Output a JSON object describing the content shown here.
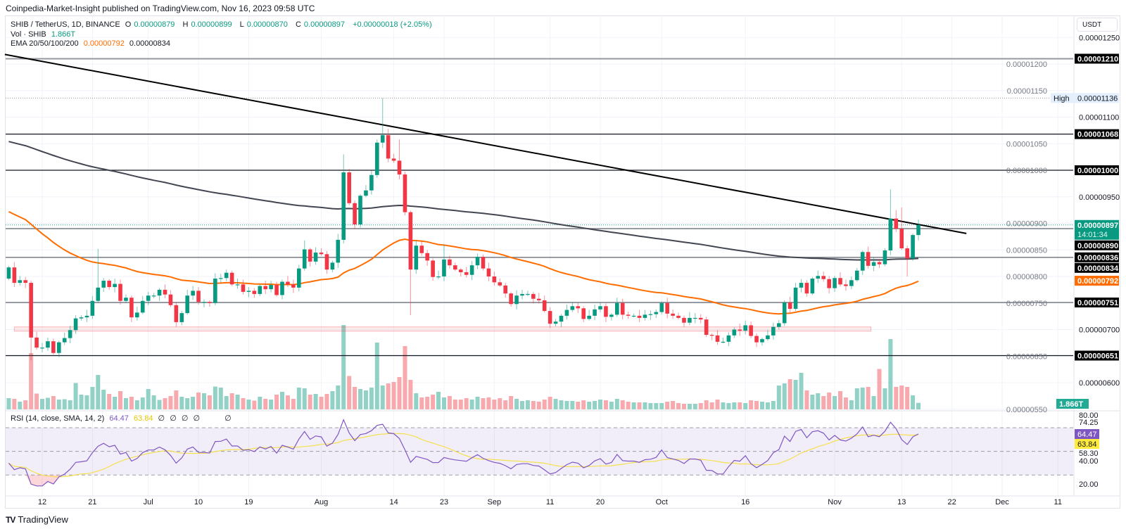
{
  "header": {
    "published": "Coinpedia-Market-Insight published on TradingView.com, Nov 16, 2023 09:58 UTC"
  },
  "legend": {
    "symbol": "SHIB / TetherUS, 1D, BINANCE",
    "o_label": "O",
    "o": "0.00000879",
    "h_label": "H",
    "h": "0.00000899",
    "l_label": "L",
    "l": "0.00000870",
    "c_label": "C",
    "c": "0.00000897",
    "change": "+0.00000018 (+2.05%)",
    "vol_label": "Vol · SHIB",
    "vol": "1.866T",
    "ema_label": "EMA 20/50/100/200",
    "ema50": "0.00000792",
    "ema200": "0.00000834"
  },
  "rsi_legend": {
    "label": "RSI (14, close, SMA, 14, 2)",
    "rsi": "64.47",
    "sma": "63.84",
    "na": [
      "∅",
      "∅",
      "∅",
      "∅",
      "∅"
    ]
  },
  "price_axis": {
    "currency": "USDT",
    "ticks": [
      {
        "value": 1250,
        "label": "0.00001250"
      },
      {
        "value": 1200,
        "label": "0.00001200"
      },
      {
        "value": 1150,
        "label": "0.00001150"
      },
      {
        "value": 1100,
        "label": "0.00001100"
      },
      {
        "value": 1050,
        "label": "0.00001050"
      },
      {
        "value": 1000,
        "label": "0.00001000"
      },
      {
        "value": 950,
        "label": "0.00000950"
      },
      {
        "value": 900,
        "label": "0.00000900"
      },
      {
        "value": 850,
        "label": "0.00000850"
      },
      {
        "value": 800,
        "label": "0.00000800"
      },
      {
        "value": 750,
        "label": "0.00000750"
      },
      {
        "value": 700,
        "label": "0.00000700"
      },
      {
        "value": 650,
        "label": "0.00000650"
      },
      {
        "value": 600,
        "label": "0.00000600"
      },
      {
        "value": 550,
        "label": "0.00000550"
      }
    ],
    "badges": [
      {
        "value": 1210,
        "label": "0.00001210",
        "kind": "level"
      },
      {
        "value": 1136,
        "label": "0.00001136",
        "kind": "high",
        "prefix": "High"
      },
      {
        "value": 1068,
        "label": "0.00001068",
        "kind": "level"
      },
      {
        "value": 1000,
        "label": "0.00001000",
        "kind": "level"
      },
      {
        "value": 897,
        "label": "0.00000897",
        "kind": "last",
        "countdown": "14:01:34"
      },
      {
        "value": 890,
        "label": "0.00000890",
        "kind": "level"
      },
      {
        "value": 836,
        "label": "0.00000836",
        "kind": "level"
      },
      {
        "value": 834,
        "label": "0.00000834",
        "kind": "ema200"
      },
      {
        "value": 792,
        "label": "0.00000792",
        "kind": "ema50"
      },
      {
        "value": 751,
        "label": "0.00000751",
        "kind": "level"
      },
      {
        "value": 651,
        "label": "0.00000651",
        "kind": "level"
      }
    ],
    "volume_badge": "1.866T"
  },
  "rsi_axis": {
    "ticks": [
      {
        "value": 80,
        "label": "80.00"
      },
      {
        "value": 74.25,
        "label": "74.25"
      },
      {
        "value": 58.3,
        "label": "58.30"
      },
      {
        "value": 40,
        "label": "40.00"
      },
      {
        "value": 20,
        "label": "20.00"
      }
    ],
    "rsi_badge": "64.47",
    "sma_badge": "63.84"
  },
  "time_axis": {
    "labels": [
      {
        "label": "12",
        "date": "2023-06-12"
      },
      {
        "label": "21",
        "date": "2023-06-21"
      },
      {
        "label": "Jul",
        "date": "2023-07-01"
      },
      {
        "label": "10",
        "date": "2023-07-10"
      },
      {
        "label": "19",
        "date": "2023-07-19"
      },
      {
        "label": "Aug",
        "date": "2023-08-01"
      },
      {
        "label": "14",
        "date": "2023-08-14"
      },
      {
        "label": "23",
        "date": "2023-08-23"
      },
      {
        "label": "Sep",
        "date": "2023-09-01"
      },
      {
        "label": "11",
        "date": "2023-09-11"
      },
      {
        "label": "20",
        "date": "2023-09-20"
      },
      {
        "label": "Oct",
        "date": "2023-10-01"
      },
      {
        "label": "16",
        "date": "2023-10-16"
      },
      {
        "label": "Nov",
        "date": "2023-11-01"
      },
      {
        "label": "13",
        "date": "2023-11-13"
      },
      {
        "label": "22",
        "date": "2023-11-22"
      },
      {
        "label": "Dec",
        "date": "2023-12-01"
      },
      {
        "label": "11",
        "date": "2023-12-11"
      }
    ]
  },
  "footer": {
    "logo_mark": "TV",
    "brand": "TradingView"
  },
  "colors": {
    "up": "#089981",
    "down": "#f23645",
    "vol_up": "#92d2c6",
    "vol_down": "#f7a9ad",
    "ema50": "#ff6d00",
    "ema200": "#434651",
    "rsi": "#7e57c2",
    "rsi_sma": "#f5e050",
    "level": "#131722",
    "level_gray": "#787b86"
  },
  "chart_data": {
    "type": "candlestick",
    "title": "SHIB / TetherUS, 1D, BINANCE",
    "price_unit": "1e-8 USDT",
    "start_date": "2023-06-05",
    "first_candle_date": "2023-06-06",
    "ylim": [
      540,
      1260
    ],
    "first_open": 796,
    "closes": [
      817,
      788,
      793,
      788,
      685,
      666,
      666,
      678,
      656,
      676,
      684,
      699,
      721,
      723,
      726,
      754,
      779,
      792,
      780,
      786,
      754,
      760,
      723,
      732,
      754,
      764,
      764,
      775,
      766,
      746,
      714,
      731,
      764,
      773,
      752,
      752,
      750,
      796,
      797,
      807,
      785,
      785,
      771,
      773,
      767,
      782,
      776,
      784,
      765,
      790,
      785,
      779,
      815,
      851,
      828,
      845,
      842,
      813,
      826,
      869,
      996,
      938,
      898,
      952,
      962,
      991,
      1052,
      1066,
      1022,
      1018,
      992,
      921,
      813,
      858,
      844,
      830,
      799,
      800,
      832,
      821,
      813,
      808,
      803,
      821,
      837,
      815,
      800,
      789,
      783,
      768,
      748,
      764,
      767,
      767,
      758,
      755,
      735,
      711,
      715,
      726,
      737,
      744,
      740,
      720,
      726,
      738,
      744,
      724,
      728,
      750,
      728,
      726,
      726,
      722,
      728,
      729,
      733,
      750,
      730,
      726,
      722,
      713,
      722,
      722,
      719,
      690,
      689,
      677,
      677,
      689,
      700,
      698,
      708,
      688,
      676,
      682,
      689,
      705,
      712,
      751,
      739,
      779,
      788,
      768,
      796,
      801,
      795,
      778,
      797,
      785,
      782,
      793,
      811,
      846,
      820,
      827,
      823,
      849,
      909,
      890,
      853,
      834,
      878,
      897
    ],
    "wick_extremes": {
      "5": {
        "low": 642
      },
      "17": {
        "high": 852
      },
      "54": {
        "high": 868
      },
      "61": {
        "high": 1030
      },
      "68": {
        "high": 1136
      },
      "69": {
        "high": 1078
      },
      "71": {
        "high": 1058
      },
      "73": {
        "low": 727
      },
      "79": {
        "high": 860
      },
      "140": {
        "low": 707
      },
      "159": {
        "high": 964
      },
      "160": {
        "high": 925
      },
      "161": {
        "high": 930
      },
      "162": {
        "low": 800
      }
    },
    "volume_T": [
      3.2,
      3.0,
      2.2,
      2.6,
      16.0,
      4.5,
      3.0,
      3.3,
      3.8,
      2.8,
      2.9,
      2.6,
      7.5,
      4.2,
      4.0,
      6.4,
      9.8,
      5.6,
      4.4,
      3.6,
      5.2,
      3.2,
      3.6,
      2.6,
      3.4,
      5.8,
      4.0,
      2.7,
      3.2,
      3.8,
      5.4,
      3.6,
      3.2,
      3.6,
      4.8,
      4.6,
      4.0,
      6.5,
      6.2,
      3.8,
      4.6,
      4.2,
      3.2,
      2.8,
      2.5,
      3.6,
      3.0,
      2.8,
      4.2,
      5.0,
      4.0,
      3.0,
      6.2,
      6.0,
      4.2,
      4.4,
      3.6,
      4.4,
      5.2,
      6.8,
      24.0,
      9.5,
      6.4,
      5.8,
      5.4,
      6.2,
      19.0,
      6.8,
      7.4,
      7.8,
      9.2,
      18.0,
      8.4,
      4.6,
      3.4,
      3.6,
      4.2,
      5.0,
      3.4,
      3.8,
      2.8,
      2.8,
      3.2,
      2.8,
      3.6,
      3.2,
      3.4,
      2.8,
      3.2,
      2.6,
      3.8,
      3.0,
      2.4,
      2.6,
      2.4,
      2.2,
      2.8,
      3.6,
      3.0,
      2.6,
      2.4,
      2.4,
      2.2,
      2.6,
      2.2,
      2.4,
      2.8,
      2.6,
      2.2,
      3.0,
      2.6,
      2.2,
      2.0,
      2.0,
      2.0,
      1.8,
      1.8,
      1.8,
      2.2,
      2.4,
      1.8,
      1.6,
      1.6,
      1.6,
      1.8,
      2.6,
      2.0,
      2.8,
      2.0,
      1.8,
      2.0,
      2.0,
      1.8,
      2.6,
      2.4,
      2.2,
      2.0,
      2.4,
      6.8,
      7.4,
      8.6,
      8.4,
      10.4,
      5.4,
      4.2,
      4.6,
      3.8,
      4.8,
      3.8,
      5.2,
      3.4,
      2.6,
      6.0,
      6.2,
      6.4,
      3.8,
      11.5,
      6.0,
      20.0,
      6.4,
      6.8,
      6.4,
      4.0,
      1.866
    ],
    "ema50_seed": 922,
    "ema200_seed": 1054,
    "levels": [
      {
        "value": 1210,
        "style": "gray-thick"
      },
      {
        "value": 1068,
        "style": "black"
      },
      {
        "value": 1000,
        "style": "black"
      },
      {
        "value": 890,
        "style": "gray"
      },
      {
        "value": 836,
        "style": "gray"
      },
      {
        "value": 751,
        "style": "gray"
      },
      {
        "value": 651,
        "style": "black"
      }
    ],
    "trendline": [
      {
        "day": 0.3,
        "value": 1218
      },
      {
        "day": 172.6,
        "value": 881
      }
    ],
    "support_zone": {
      "from_day": 2,
      "to_day": 155.5,
      "low": 697,
      "high": 705
    },
    "rsi": {
      "period": 14,
      "sma_period": 14,
      "bands": [
        70,
        50,
        30
      ],
      "ylim": [
        20,
        80
      ]
    }
  }
}
